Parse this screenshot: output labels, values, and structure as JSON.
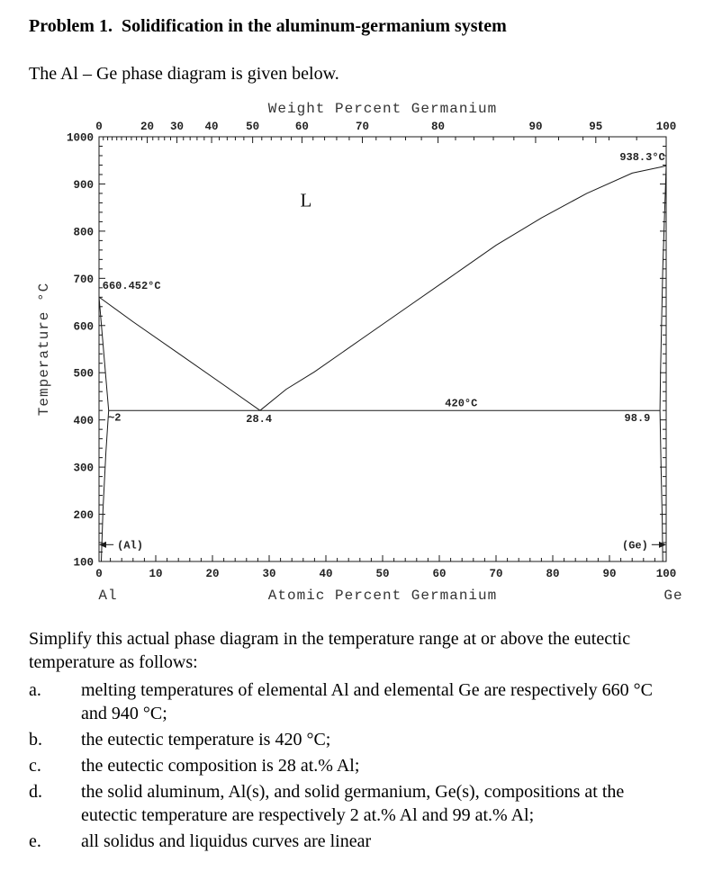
{
  "page": {
    "title": "Problem 1.  Solidification in the aluminum-germanium system",
    "intro": "The Al – Ge phase diagram is given below.",
    "instructions": "Simplify this actual phase diagram in the temperature range at or above the eutectic temperature as follows:",
    "list": [
      {
        "label": "a.",
        "text": "melting temperatures of elemental Al and elemental Ge are respectively 660 °C and 940 °C;"
      },
      {
        "label": "b.",
        "text": "the eutectic temperature is 420 °C;"
      },
      {
        "label": "c.",
        "text": "the eutectic composition is 28 at.% Al;"
      },
      {
        "label": "d.",
        "text": "the solid aluminum, Al(s), and solid germanium, Ge(s), compositions at the eutectic temperature are respectively 2 at.% Al and 99 at.% Al;"
      },
      {
        "label": "e.",
        "text": "all solidus and liquidus curves are linear"
      }
    ]
  },
  "chart_data": {
    "type": "line",
    "title": "Al–Ge phase diagram",
    "top_axis": {
      "title": "Weight Percent Germanium",
      "ticks": [
        0,
        20,
        30,
        40,
        50,
        60,
        70,
        80,
        90,
        95,
        100
      ],
      "minor_step": 2
    },
    "bottom_axis": {
      "title": "Atomic Percent Germanium",
      "ticks": [
        0,
        10,
        20,
        30,
        40,
        50,
        60,
        70,
        80,
        90,
        100
      ],
      "minor_step": 2,
      "left_end_label": "Al",
      "right_end_label": "Ge"
    },
    "y_axis": {
      "title": "Temperature °C",
      "range": [
        100,
        1000
      ],
      "ticks": [
        100,
        200,
        300,
        400,
        500,
        600,
        700,
        800,
        900,
        1000
      ],
      "minor_step": 20
    },
    "x_range": [
      0,
      100
    ],
    "weight_to_atomic_mass_ratio": 2.692,
    "key_points": {
      "al_melting_c": 660.452,
      "ge_melting_c": 938.3,
      "eutectic_temp_c": 420,
      "eutectic_at_pct_ge": 28.4,
      "al_solidus_at_eutectic": "~2",
      "ge_solidus_at_eutectic": 98.9,
      "phase_label_liquid": "L",
      "phase_label_al": "(Al)",
      "phase_label_ge": "(Ge)"
    },
    "series": [
      {
        "name": "liquidus-al-side",
        "points": [
          [
            0,
            660.452
          ],
          [
            6,
            608
          ],
          [
            14,
            541
          ],
          [
            22,
            474
          ],
          [
            28.4,
            420
          ]
        ]
      },
      {
        "name": "liquidus-ge-side",
        "points": [
          [
            28.4,
            420
          ],
          [
            33,
            465
          ],
          [
            38,
            502
          ],
          [
            46,
            569
          ],
          [
            54,
            636
          ],
          [
            62,
            703
          ],
          [
            70,
            770
          ],
          [
            78,
            828
          ],
          [
            86,
            880
          ],
          [
            94,
            923
          ],
          [
            100,
            938.3
          ]
        ]
      },
      {
        "name": "eutectic-isotherm",
        "points": [
          [
            1.7,
            420
          ],
          [
            98.9,
            420
          ]
        ]
      },
      {
        "name": "al-solvus",
        "points": [
          [
            0,
            660.452
          ],
          [
            1.7,
            420
          ],
          [
            1.2,
            330
          ],
          [
            0.7,
            210
          ],
          [
            0.4,
            100
          ]
        ]
      },
      {
        "name": "ge-solvus",
        "points": [
          [
            100,
            938.3
          ],
          [
            99.4,
            720
          ],
          [
            99.0,
            500
          ],
          [
            98.9,
            420
          ],
          [
            99.1,
            300
          ],
          [
            99.3,
            190
          ],
          [
            99.4,
            100
          ]
        ]
      }
    ],
    "annotations": [
      {
        "text": "L",
        "at": 36.5,
        "temp": 852,
        "anchor": "middle",
        "cls": "ann-large"
      },
      {
        "text": "938.3°C",
        "at": 99.8,
        "temp": 950,
        "anchor": "end",
        "cls": "ann"
      },
      {
        "text": "660.452°C",
        "at": 0.6,
        "temp": 678,
        "anchor": "start",
        "cls": "ann"
      },
      {
        "text": "420°C",
        "at": 61,
        "temp": 429,
        "anchor": "start",
        "cls": "ann"
      },
      {
        "text": "~2",
        "at": 1.6,
        "temp": 398,
        "anchor": "start",
        "cls": "ann"
      },
      {
        "text": "28.4",
        "at": 28.2,
        "temp": 396,
        "anchor": "middle",
        "cls": "ann"
      },
      {
        "text": "98.9",
        "at": 97.2,
        "temp": 397,
        "anchor": "end",
        "cls": "ann"
      },
      {
        "text": "(Al)",
        "at": 3.2,
        "temp": 128,
        "anchor": "start",
        "cls": "ann",
        "arrow": "left"
      },
      {
        "text": "(Ge)",
        "at": 96.8,
        "temp": 128,
        "anchor": "end",
        "cls": "ann",
        "arrow": "right"
      }
    ]
  }
}
